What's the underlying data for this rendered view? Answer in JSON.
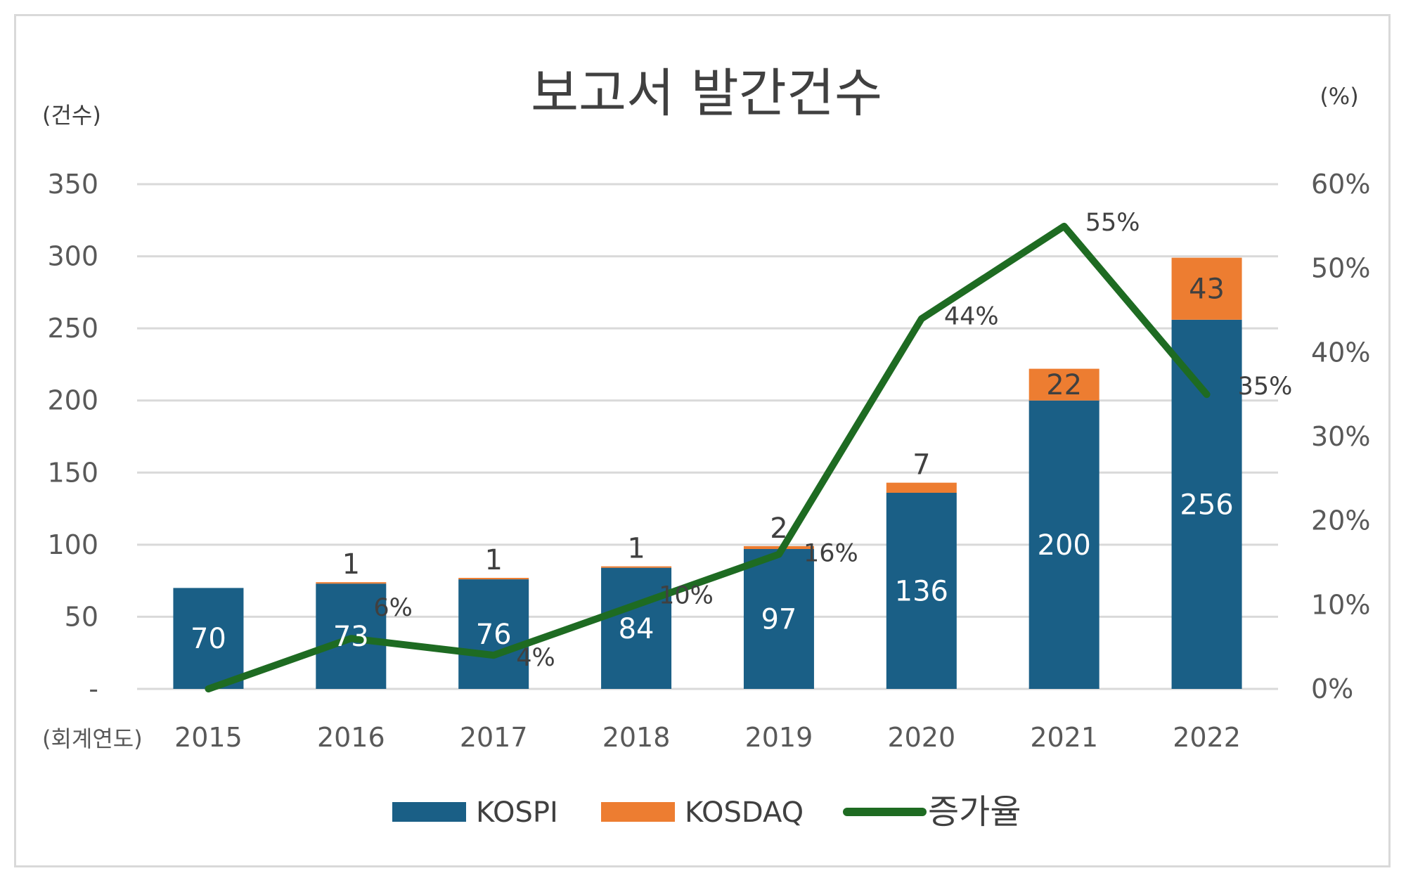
{
  "colors": {
    "kospi": "#1a5f86",
    "kosdaq": "#ed7d31",
    "line": "#1e6b22",
    "grid": "#d9d9d9"
  },
  "chart_data": {
    "type": "bar",
    "title": "보고서 발간건수",
    "y_unit_label": "(건수)",
    "y2_unit_label": "(%)",
    "x_unit_label": "(회계연도)",
    "categories": [
      "2015",
      "2016",
      "2017",
      "2018",
      "2019",
      "2020",
      "2021",
      "2022"
    ],
    "ylim": [
      0,
      350
    ],
    "y_ticks": [
      "-",
      "50",
      "100",
      "150",
      "200",
      "250",
      "300",
      "350"
    ],
    "y2lim": [
      0,
      60
    ],
    "y2_ticks": [
      "0%",
      "10%",
      "20%",
      "30%",
      "40%",
      "50%",
      "60%"
    ],
    "series": [
      {
        "name": "KOSPI",
        "kind": "bar",
        "stack": true,
        "values": [
          70,
          73,
          76,
          84,
          97,
          136,
          200,
          256
        ],
        "labels": [
          "70",
          "73",
          "76",
          "84",
          "97",
          "136",
          "200",
          "256"
        ]
      },
      {
        "name": "KOSDAQ",
        "kind": "bar",
        "stack": true,
        "values": [
          0,
          1,
          1,
          1,
          2,
          7,
          22,
          43
        ],
        "labels": [
          "",
          "1",
          "1",
          "1",
          "2",
          "7",
          "22",
          "43"
        ]
      },
      {
        "name": "증가율",
        "kind": "line",
        "axis": "right",
        "values": [
          0,
          6,
          4,
          10,
          16,
          44,
          55,
          35
        ],
        "labels": [
          "",
          "6%",
          "4%",
          "10%",
          "16%",
          "44%",
          "55%",
          "35%"
        ]
      }
    ],
    "legend_position": "bottom",
    "grid": true
  }
}
